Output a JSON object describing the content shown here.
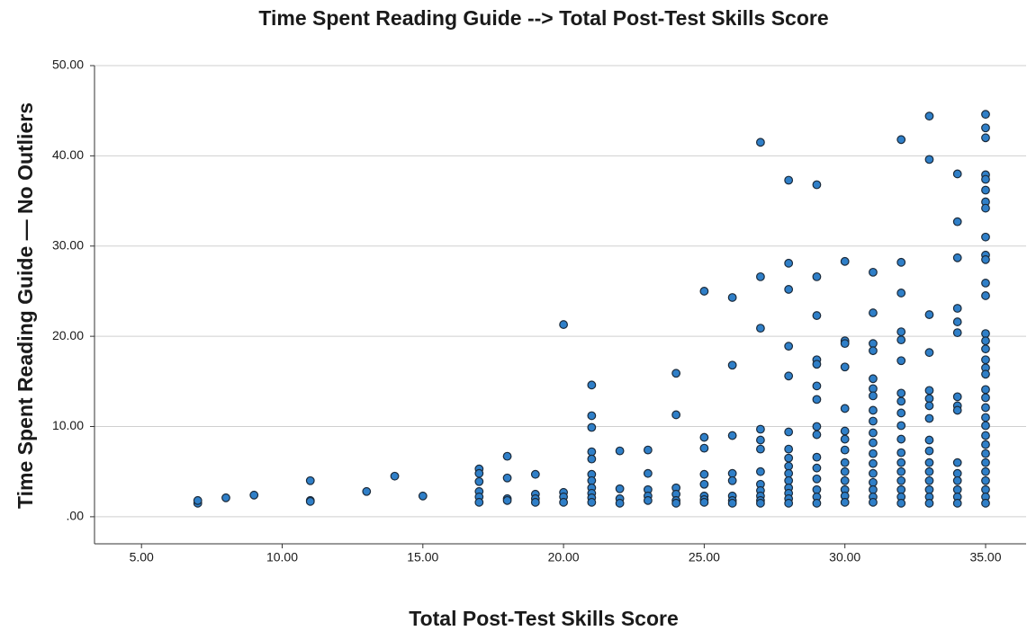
{
  "chart_data": {
    "type": "scatter",
    "title": "Time Spent Reading Guide --> Total Post-Test Skills Score",
    "x_label": "Total Post-Test Skills Score",
    "y_label": "Time Spent Reading Guide — No Outliers",
    "color": "#2f7fc8",
    "grid": true,
    "xlim": [
      3.33,
      36.44
    ],
    "ylim": [
      -3,
      50
    ],
    "xticks": [
      {
        "value": 5,
        "label": "5.00"
      },
      {
        "value": 10,
        "label": "10.00"
      },
      {
        "value": 15,
        "label": "15.00"
      },
      {
        "value": 20,
        "label": "20.00"
      },
      {
        "value": 25,
        "label": "25.00"
      },
      {
        "value": 30,
        "label": "30.00"
      },
      {
        "value": 35,
        "label": "35.00"
      }
    ],
    "yticks": [
      {
        "value": 0,
        "label": ".00"
      },
      {
        "value": 10,
        "label": "10.00"
      },
      {
        "value": 20,
        "label": "20.00"
      },
      {
        "value": 30,
        "label": "30.00"
      },
      {
        "value": 40,
        "label": "40.00"
      },
      {
        "value": 50,
        "label": "50.00"
      }
    ],
    "x": [
      7,
      7,
      8,
      9,
      11,
      11,
      11,
      13,
      14,
      15,
      17,
      17,
      17,
      17,
      17,
      17,
      18,
      18,
      18,
      18,
      19,
      19,
      19,
      19,
      20,
      20,
      20,
      20,
      21,
      21,
      21,
      21,
      21,
      21,
      21,
      21,
      21,
      21,
      21,
      22,
      22,
      22,
      22,
      23,
      23,
      23,
      23,
      23,
      24,
      24,
      24,
      24,
      24,
      24,
      25,
      25,
      25,
      25,
      25,
      25,
      25,
      25,
      26,
      26,
      26,
      26,
      26,
      26,
      26,
      26,
      27,
      27,
      27,
      27,
      27,
      27,
      27,
      27,
      27,
      27,
      27,
      27,
      28,
      28,
      28,
      28,
      28,
      28,
      28,
      28,
      28,
      28,
      28,
      28,
      28,
      28,
      28,
      29,
      29,
      29,
      29,
      29,
      29,
      29,
      29,
      29,
      29,
      29,
      29,
      29,
      29,
      29,
      30,
      30,
      30,
      30,
      30,
      30,
      30,
      30,
      30,
      30,
      30,
      30,
      30,
      30,
      31,
      31,
      31,
      31,
      31,
      31,
      31,
      31,
      31,
      31,
      31,
      31,
      31,
      31,
      31,
      31,
      31,
      31,
      32,
      32,
      32,
      32,
      32,
      32,
      32,
      32,
      32,
      32,
      32,
      32,
      32,
      32,
      32,
      32,
      32,
      32,
      33,
      33,
      33,
      33,
      33,
      33,
      33,
      33,
      33,
      33,
      33,
      33,
      33,
      33,
      33,
      33,
      34,
      34,
      34,
      34,
      34,
      34,
      34,
      34,
      34,
      34,
      34,
      34,
      34,
      34,
      34,
      35,
      35,
      35,
      35,
      35,
      35,
      35,
      35,
      35,
      35,
      35,
      35,
      35,
      35,
      35,
      35,
      35,
      35,
      35,
      35,
      35,
      35,
      35,
      35,
      35,
      35,
      35,
      35,
      35,
      35,
      35,
      35,
      35
    ],
    "values": [
      1.5,
      1.8,
      2.1,
      2.4,
      4.0,
      1.8,
      1.7,
      2.8,
      4.5,
      2.3,
      5.3,
      4.8,
      3.9,
      2.8,
      2.2,
      1.6,
      6.7,
      4.3,
      2.0,
      1.8,
      4.7,
      2.5,
      2.0,
      1.6,
      21.3,
      2.7,
      2.2,
      1.6,
      14.6,
      11.2,
      9.9,
      7.2,
      6.4,
      4.7,
      4.0,
      3.2,
      2.6,
      2.1,
      1.6,
      7.3,
      3.1,
      2.0,
      1.5,
      7.4,
      4.8,
      3.0,
      2.3,
      1.8,
      15.9,
      11.3,
      3.2,
      2.5,
      1.8,
      1.5,
      25.0,
      8.8,
      7.6,
      4.7,
      3.6,
      2.3,
      1.9,
      1.6,
      24.3,
      16.8,
      9.0,
      4.8,
      4.0,
      2.3,
      1.8,
      1.5,
      41.5,
      26.6,
      20.9,
      9.7,
      8.5,
      7.5,
      5.0,
      3.6,
      2.9,
      2.3,
      1.8,
      1.5,
      37.3,
      28.1,
      25.2,
      18.9,
      15.6,
      9.4,
      7.5,
      6.5,
      5.6,
      4.8,
      4.0,
      3.2,
      2.6,
      2.0,
      1.5,
      36.8,
      26.6,
      22.3,
      17.4,
      16.9,
      14.5,
      13.0,
      10.0,
      9.1,
      6.6,
      5.4,
      4.2,
      3.0,
      2.2,
      1.5,
      28.3,
      19.5,
      19.2,
      16.6,
      12.0,
      9.5,
      8.6,
      7.4,
      6.0,
      5.0,
      4.0,
      3.0,
      2.3,
      1.6,
      27.1,
      22.6,
      19.2,
      18.4,
      15.3,
      14.2,
      13.4,
      11.8,
      10.6,
      9.3,
      8.2,
      7.0,
      5.9,
      4.8,
      3.8,
      3.0,
      2.2,
      1.6,
      41.8,
      28.2,
      24.8,
      20.5,
      19.6,
      17.3,
      13.7,
      12.8,
      11.5,
      10.1,
      8.6,
      7.1,
      6.0,
      5.0,
      4.0,
      3.0,
      2.2,
      1.5,
      44.4,
      39.6,
      22.4,
      18.2,
      14.0,
      13.1,
      12.3,
      10.9,
      8.5,
      7.3,
      6.0,
      5.0,
      4.0,
      3.0,
      2.2,
      1.5,
      38.0,
      32.7,
      28.7,
      23.1,
      21.6,
      20.4,
      13.3,
      12.3,
      11.8,
      6.0,
      4.8,
      4.0,
      3.0,
      2.2,
      1.5,
      44.6,
      43.1,
      42.0,
      37.9,
      37.4,
      36.2,
      34.9,
      34.2,
      31.0,
      29.0,
      28.5,
      25.9,
      24.5,
      20.3,
      19.5,
      18.6,
      17.4,
      16.5,
      15.8,
      14.1,
      13.2,
      12.1,
      11.0,
      10.1,
      9.0,
      8.0,
      7.0,
      6.0,
      5.0,
      4.0,
      3.0,
      2.2,
      1.5
    ]
  }
}
